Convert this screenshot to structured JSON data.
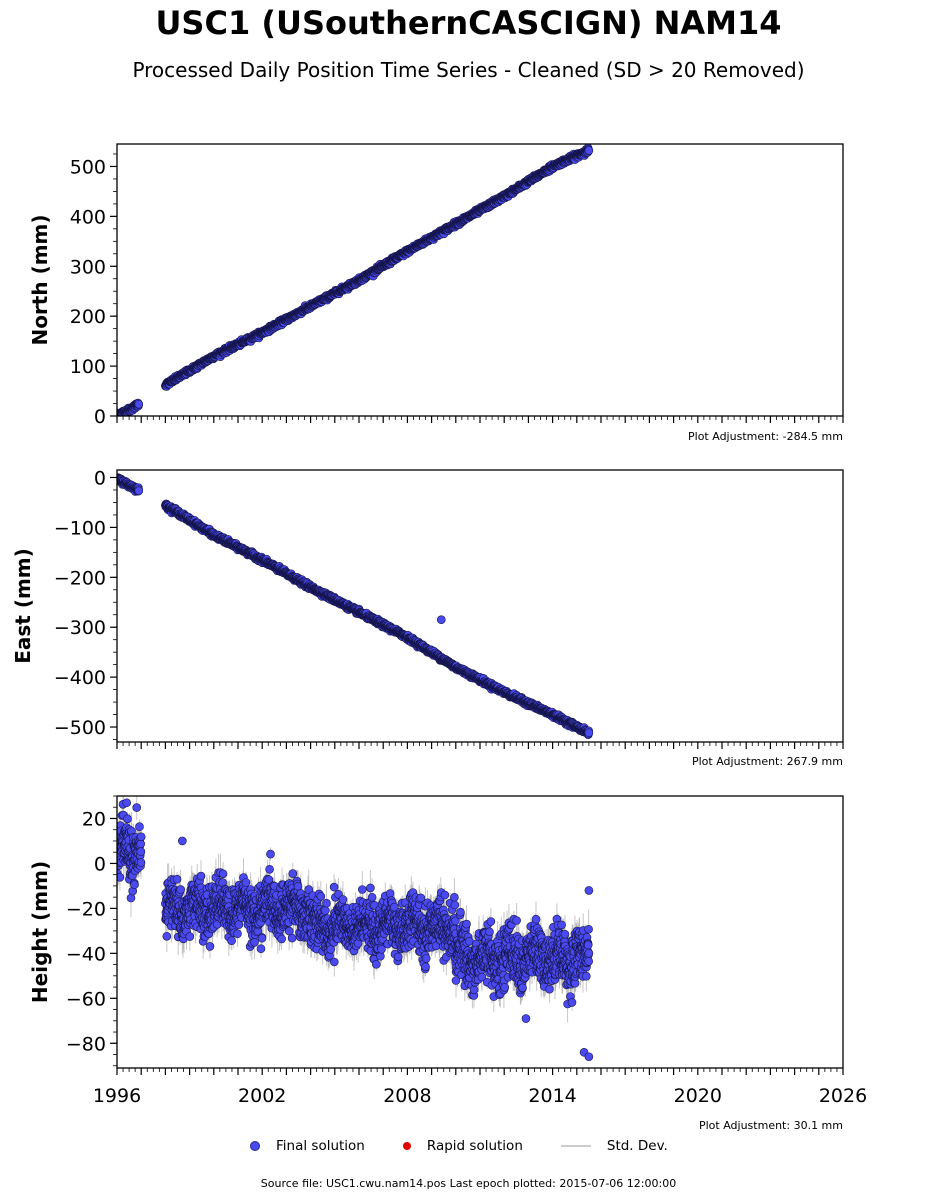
{
  "title": "USC1 (USouthernCASCIGN) NAM14",
  "subtitle": "Processed Daily Position Time Series - Cleaned (SD > 20 Removed)",
  "source_note": "Source file: USC1.cwu.nam14.pos  Last epoch plotted: 2015-07-06 12:00:00",
  "legend": {
    "final": "Final solution",
    "rapid": "Rapid solution",
    "std": "Std. Dev."
  },
  "colors": {
    "final_fill": "#4a4af0",
    "final_edge": "#15154a",
    "rapid": "#e00000",
    "std": "#b0b0b0"
  },
  "chart_data": [
    {
      "type": "scatter",
      "ylabel": "North (mm)",
      "adjustment": "Plot Adjustment: -284.5 mm",
      "xlim": [
        1996,
        2026
      ],
      "ylim": [
        0,
        545
      ],
      "yticks": [
        0,
        100,
        200,
        300,
        400,
        500
      ],
      "ytick_labels": [
        "0",
        "100",
        "200",
        "300",
        "400",
        "500"
      ],
      "series": [
        {
          "segments": [
            {
              "x": [
                1996.0,
                1996.3,
                1996.6,
                1996.9
              ],
              "y": [
                2,
                8,
                14,
                25
              ]
            },
            {
              "x": [
                1998.0,
                2000.0,
                2002.0,
                2004.0,
                2006.0,
                2008.0,
                2010.0,
                2012.0,
                2014.0,
                2015.5
              ],
              "y": [
                62,
                120,
                167,
                220,
                272,
                330,
                385,
                440,
                500,
                533
              ]
            }
          ]
        }
      ],
      "xlabel": ""
    },
    {
      "type": "scatter",
      "ylabel": "East (mm)",
      "adjustment": "Plot Adjustment: 267.9 mm",
      "xlim": [
        1996,
        2026
      ],
      "ylim": [
        -530,
        15
      ],
      "yticks": [
        0,
        -100,
        -200,
        -300,
        -400,
        -500
      ],
      "ytick_labels": [
        "0",
        "−100",
        "−200",
        "−300",
        "−400",
        "−500"
      ],
      "series": [
        {
          "segments": [
            {
              "x": [
                1996.0,
                1996.3,
                1996.6,
                1996.9
              ],
              "y": [
                -3,
                -10,
                -18,
                -25
              ]
            },
            {
              "x": [
                1998.0,
                2000.0,
                2002.0,
                2004.0,
                2006.0,
                2008.0,
                2010.0,
                2012.0,
                2014.0,
                2015.5
              ],
              "y": [
                -55,
                -115,
                -165,
                -220,
                -270,
                -320,
                -380,
                -430,
                -475,
                -512
              ]
            }
          ],
          "outliers": [
            {
              "x": 2009.4,
              "y": -285
            }
          ]
        }
      ],
      "xlabel": ""
    },
    {
      "type": "scatter",
      "ylabel": "Height (mm)",
      "adjustment": "Plot Adjustment: 30.1 mm",
      "xlim": [
        1996,
        2026
      ],
      "ylim": [
        -91,
        30
      ],
      "yticks": [
        20,
        0,
        -20,
        -40,
        -60,
        -80
      ],
      "ytick_labels": [
        "20",
        "0",
        "−20",
        "−40",
        "−60",
        "−80"
      ],
      "xticks": [
        1996,
        2002,
        2008,
        2014,
        2020,
        2026
      ],
      "xtick_labels": [
        "1996",
        "2002",
        "2008",
        "2014",
        "2020",
        "2026"
      ],
      "series": [
        {
          "segments": [
            {
              "x": [
                1996.0,
                1997.0
              ],
              "mean": 5,
              "spread": 12
            },
            {
              "x": [
                1998.0,
                2004.0
              ],
              "mean": -20,
              "spread": 10
            },
            {
              "x": [
                2004.0,
                2010.0
              ],
              "mean": -28,
              "spread": 10
            },
            {
              "x": [
                2010.0,
                2015.5
              ],
              "mean": -42,
              "spread": 11
            }
          ],
          "extremes": [
            {
              "x": 1996.4,
              "y": 27
            },
            {
              "x": 1998.7,
              "y": 10
            },
            {
              "x": 2012.9,
              "y": -69
            },
            {
              "x": 2015.3,
              "y": -84
            },
            {
              "x": 2015.5,
              "y": -86
            },
            {
              "x": 2015.5,
              "y": -12
            }
          ]
        }
      ],
      "xlabel": ""
    }
  ]
}
